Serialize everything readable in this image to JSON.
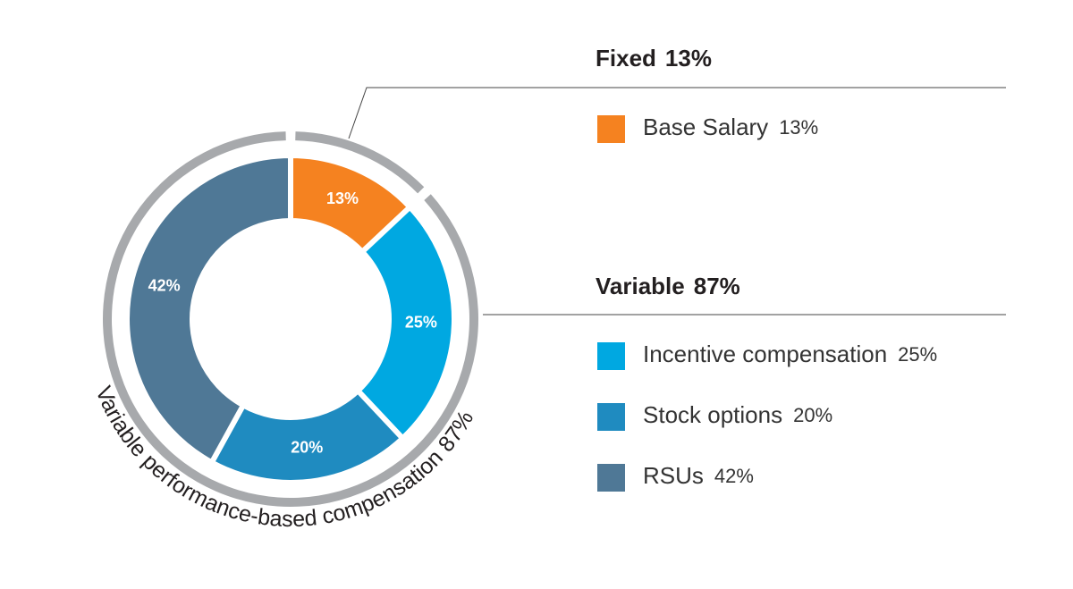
{
  "chart_data": {
    "type": "pie",
    "categories": [
      "Base Salary",
      "Incentive compensation",
      "Stock options",
      "RSUs"
    ],
    "values": [
      13,
      25,
      20,
      42
    ],
    "value_labels": [
      "13%",
      "25%",
      "20%",
      "42%"
    ],
    "colors": [
      "#f58220",
      "#00a8e1",
      "#1f8bc0",
      "#4f7896"
    ],
    "groups": [
      {
        "name": "Fixed",
        "value": 13,
        "value_label": "13%"
      },
      {
        "name": "Variable",
        "value": 87,
        "value_label": "87%"
      }
    ],
    "ring_label": {
      "text": "Variable performance-based compensation",
      "value": 87,
      "value_label": "87%"
    }
  }
}
